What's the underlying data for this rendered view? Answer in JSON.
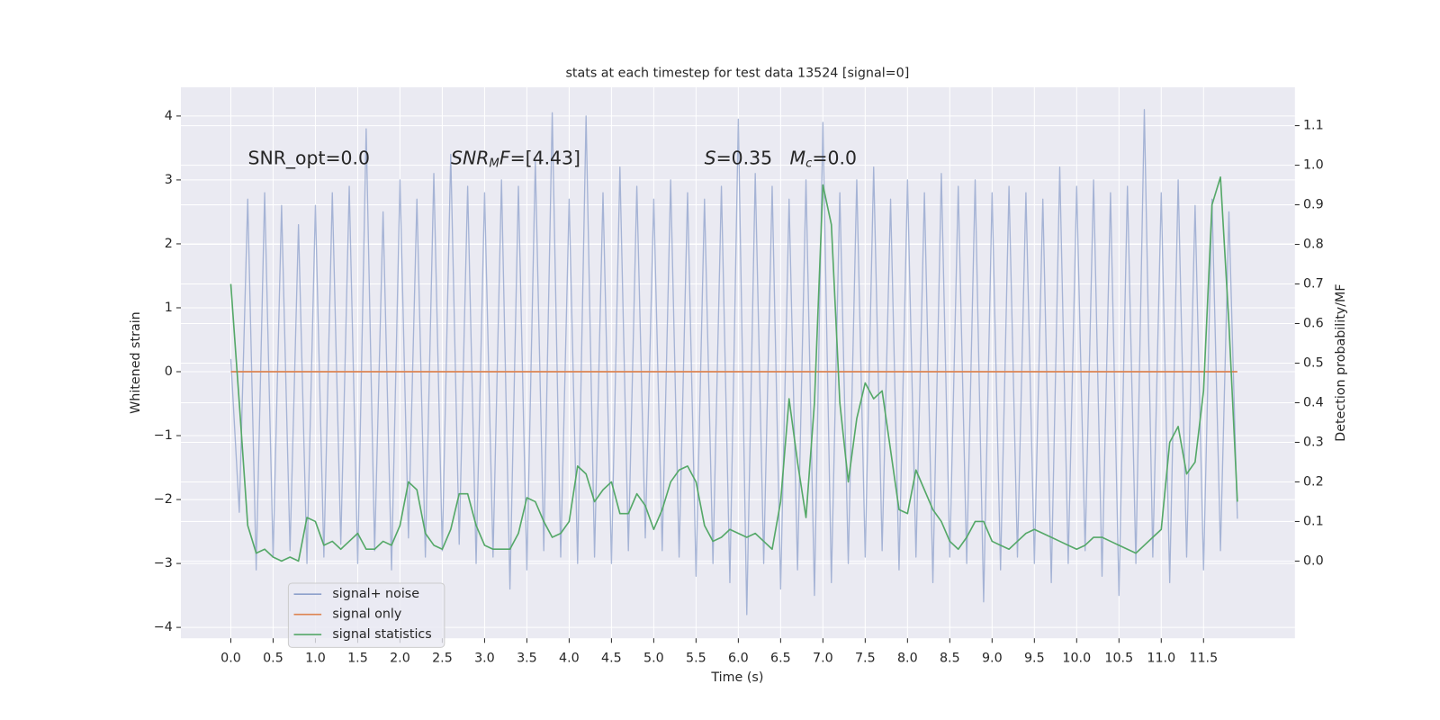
{
  "chart_data": {
    "type": "line",
    "title": "stats at each timestep for test data 13524 [signal=0]",
    "xlabel": "Time (s)",
    "ylabel": "Whitened strain",
    "y2label": "Detection probability/MF",
    "grid": true,
    "legend": "lower left",
    "xlim": [
      -0.59,
      12.58
    ],
    "ylim": [
      -4.17,
      4.45
    ],
    "y2lim": [
      -0.195,
      1.197
    ],
    "xticks": [
      {
        "value": 0,
        "label": "0.0"
      },
      0.5,
      {
        "value": 1,
        "label": "1.0"
      },
      1.5,
      {
        "value": 2,
        "label": "2.0"
      },
      2.5,
      {
        "value": 3,
        "label": "3.0"
      },
      3.5,
      {
        "value": 4,
        "label": "4.0"
      },
      4.5,
      {
        "value": 5,
        "label": "5.0"
      },
      5.5,
      {
        "value": 6,
        "label": "6.0"
      },
      6.5,
      {
        "value": 7,
        "label": "7.0"
      },
      7.5,
      {
        "value": 8,
        "label": "8.0"
      },
      8.5,
      {
        "value": 9,
        "label": "9.0"
      },
      9.5,
      {
        "value": 10,
        "label": "10.0"
      },
      10.5,
      {
        "value": 11,
        "label": "11.0"
      },
      11.5
    ],
    "yticks": [
      {
        "value": -4,
        "label": "−4"
      },
      {
        "value": -3,
        "label": "−3"
      },
      {
        "value": -2,
        "label": "−2"
      },
      {
        "value": -1,
        "label": "−1"
      },
      0,
      1,
      2,
      3,
      4
    ],
    "y2ticks": [
      {
        "value": 0,
        "label": "0.0"
      },
      0.1,
      0.2,
      0.3,
      0.4,
      0.5,
      0.6,
      0.7,
      0.8,
      0.9,
      {
        "value": 1,
        "label": "1.0"
      },
      1.1
    ],
    "annotations": [
      [
        {
          "text": "SNR_opt=0.0"
        }
      ],
      [
        {
          "text": "SNR",
          "style": "italic"
        },
        {
          "text": "M",
          "style": "sub"
        },
        {
          "text": "F",
          "style": "italic"
        },
        {
          "text": "=[4.43]"
        }
      ],
      [
        {
          "text": "S",
          "style": "italic"
        },
        {
          "text": "=0.35   "
        },
        {
          "text": "M",
          "style": "italic"
        },
        {
          "text": "c",
          "style": "sub"
        },
        {
          "text": "=0.0"
        }
      ]
    ],
    "x": [
      0.0,
      0.1,
      0.2,
      0.3,
      0.4,
      0.5,
      0.6,
      0.7,
      0.8,
      0.9,
      1.0,
      1.1,
      1.2,
      1.3,
      1.4,
      1.5,
      1.6,
      1.7,
      1.8,
      1.9,
      2.0,
      2.1,
      2.2,
      2.3,
      2.4,
      2.5,
      2.6,
      2.7,
      2.8,
      2.9,
      3.0,
      3.1,
      3.2,
      3.3,
      3.4,
      3.5,
      3.6,
      3.7,
      3.8,
      3.9,
      4.0,
      4.1,
      4.2,
      4.3,
      4.4,
      4.5,
      4.6,
      4.7,
      4.8,
      4.9,
      5.0,
      5.1,
      5.2,
      5.3,
      5.4,
      5.5,
      5.6,
      5.7,
      5.8,
      5.9,
      6.0,
      6.1,
      6.2,
      6.3,
      6.4,
      6.5,
      6.6,
      6.7,
      6.8,
      6.9,
      7.0,
      7.1,
      7.2,
      7.3,
      7.4,
      7.5,
      7.6,
      7.7,
      7.8,
      7.9,
      8.0,
      8.1,
      8.2,
      8.3,
      8.4,
      8.5,
      8.6,
      8.7,
      8.8,
      8.9,
      9.0,
      9.1,
      9.2,
      9.3,
      9.4,
      9.5,
      9.6,
      9.7,
      9.8,
      9.9,
      10.0,
      10.1,
      10.2,
      10.3,
      10.4,
      10.5,
      10.6,
      10.7,
      10.8,
      10.9,
      11.0,
      11.1,
      11.2,
      11.3,
      11.4,
      11.5,
      11.6,
      11.7,
      11.8,
      11.9
    ],
    "series": [
      {
        "name": "signal+ noise",
        "color": "#8da0cb",
        "values": [
          0.2,
          -2.2,
          2.7,
          -3.1,
          2.8,
          -2.9,
          2.6,
          -2.8,
          2.3,
          -3.0,
          2.6,
          -2.9,
          2.8,
          -2.7,
          2.9,
          -3.0,
          3.8,
          -2.8,
          2.5,
          -3.1,
          3.0,
          -2.6,
          2.7,
          -2.9,
          3.1,
          -2.8,
          3.4,
          -2.7,
          2.9,
          -3.0,
          2.8,
          -2.9,
          3.0,
          -3.4,
          2.9,
          -3.1,
          3.3,
          -2.8,
          4.05,
          -2.9,
          2.7,
          -3.0,
          4.0,
          -2.9,
          2.8,
          -3.0,
          3.2,
          -2.8,
          2.9,
          -2.6,
          2.7,
          -2.8,
          3.0,
          -2.9,
          2.8,
          -3.2,
          2.7,
          -3.0,
          2.9,
          -3.3,
          3.95,
          -3.8,
          3.1,
          -3.0,
          2.9,
          -3.4,
          2.7,
          -3.1,
          3.0,
          -3.5,
          3.9,
          -3.3,
          2.8,
          -3.0,
          3.0,
          -2.9,
          3.2,
          -2.8,
          2.7,
          -3.1,
          3.0,
          -2.9,
          2.8,
          -3.3,
          3.1,
          -2.9,
          2.9,
          -3.0,
          3.0,
          -3.6,
          2.8,
          -3.1,
          2.9,
          -2.9,
          2.8,
          -3.0,
          2.7,
          -3.3,
          3.2,
          -3.0,
          2.9,
          -2.8,
          3.0,
          -3.2,
          2.8,
          -3.5,
          2.9,
          -3.0,
          4.1,
          -2.9,
          2.8,
          -3.3,
          3.0,
          -2.9,
          2.6,
          -3.1,
          2.7,
          -2.8,
          2.5,
          -2.3
        ]
      },
      {
        "name": "signal only",
        "color": "#dd8452",
        "values": [
          0,
          0,
          0,
          0,
          0,
          0,
          0,
          0,
          0,
          0,
          0,
          0,
          0,
          0,
          0,
          0,
          0,
          0,
          0,
          0,
          0,
          0,
          0,
          0,
          0,
          0,
          0,
          0,
          0,
          0,
          0,
          0,
          0,
          0,
          0,
          0,
          0,
          0,
          0,
          0,
          0,
          0,
          0,
          0,
          0,
          0,
          0,
          0,
          0,
          0,
          0,
          0,
          0,
          0,
          0,
          0,
          0,
          0,
          0,
          0,
          0,
          0,
          0,
          0,
          0,
          0,
          0,
          0,
          0,
          0,
          0,
          0,
          0,
          0,
          0,
          0,
          0,
          0,
          0,
          0,
          0,
          0,
          0,
          0,
          0,
          0,
          0,
          0,
          0,
          0,
          0,
          0,
          0,
          0,
          0,
          0,
          0,
          0,
          0,
          0,
          0,
          0,
          0,
          0,
          0,
          0,
          0,
          0,
          0,
          0,
          0,
          0,
          0,
          0,
          0,
          0,
          0,
          0,
          0,
          0
        ]
      },
      {
        "name": "signal statistics",
        "color": "#55a868",
        "axis": "y2",
        "values": [
          0.7,
          0.4,
          0.09,
          0.02,
          0.03,
          0.01,
          0.0,
          0.01,
          0.0,
          0.11,
          0.1,
          0.04,
          0.05,
          0.03,
          0.05,
          0.07,
          0.03,
          0.03,
          0.05,
          0.04,
          0.09,
          0.2,
          0.18,
          0.07,
          0.04,
          0.03,
          0.08,
          0.17,
          0.17,
          0.09,
          0.04,
          0.03,
          0.03,
          0.03,
          0.07,
          0.16,
          0.15,
          0.1,
          0.06,
          0.07,
          0.1,
          0.24,
          0.22,
          0.15,
          0.18,
          0.2,
          0.12,
          0.12,
          0.17,
          0.14,
          0.08,
          0.13,
          0.2,
          0.23,
          0.24,
          0.2,
          0.09,
          0.05,
          0.06,
          0.08,
          0.07,
          0.06,
          0.07,
          0.05,
          0.03,
          0.15,
          0.41,
          0.25,
          0.11,
          0.4,
          0.95,
          0.85,
          0.4,
          0.2,
          0.36,
          0.45,
          0.41,
          0.43,
          0.28,
          0.13,
          0.12,
          0.23,
          0.18,
          0.13,
          0.1,
          0.05,
          0.03,
          0.06,
          0.1,
          0.1,
          0.05,
          0.04,
          0.03,
          0.05,
          0.07,
          0.08,
          0.07,
          0.06,
          0.05,
          0.04,
          0.03,
          0.04,
          0.06,
          0.06,
          0.05,
          0.04,
          0.03,
          0.02,
          0.04,
          0.06,
          0.08,
          0.3,
          0.34,
          0.22,
          0.25,
          0.43,
          0.9,
          0.97,
          0.6,
          0.15
        ]
      }
    ]
  }
}
